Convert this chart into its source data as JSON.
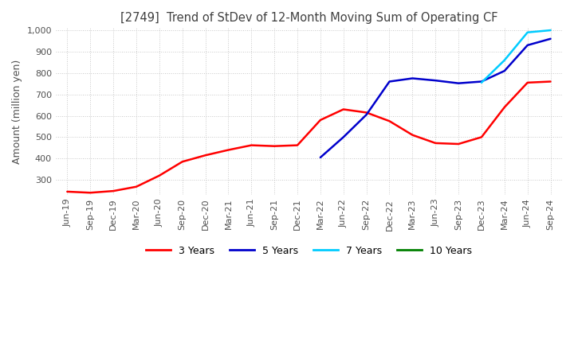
{
  "title": "[2749]  Trend of StDev of 12-Month Moving Sum of Operating CF",
  "ylabel": "Amount (million yen)",
  "ylim": [
    230,
    1010
  ],
  "yticks": [
    300,
    400,
    500,
    600,
    700,
    800,
    900,
    1000
  ],
  "background_color": "#ffffff",
  "grid_color": "#c8c8c8",
  "title_color": "#404040",
  "dates": [
    "Jun-19",
    "Sep-19",
    "Dec-19",
    "Mar-20",
    "Jun-20",
    "Sep-20",
    "Dec-20",
    "Mar-21",
    "Jun-21",
    "Sep-21",
    "Dec-21",
    "Mar-22",
    "Jun-22",
    "Sep-22",
    "Dec-22",
    "Mar-23",
    "Jun-23",
    "Sep-23",
    "Dec-23",
    "Mar-24",
    "Jun-24",
    "Sep-24"
  ],
  "series": {
    "3 Years": {
      "color": "#ff0000",
      "values": [
        245,
        240,
        248,
        268,
        320,
        385,
        415,
        440,
        462,
        458,
        462,
        580,
        630,
        615,
        575,
        510,
        472,
        468,
        500,
        640,
        755,
        760
      ]
    },
    "5 Years": {
      "color": "#0000cc",
      "values": [
        null,
        null,
        null,
        null,
        null,
        null,
        null,
        null,
        null,
        null,
        null,
        405,
        500,
        605,
        760,
        775,
        765,
        752,
        760,
        810,
        930,
        960
      ]
    },
    "7 Years": {
      "color": "#00ccff",
      "values": [
        null,
        null,
        null,
        null,
        null,
        null,
        null,
        null,
        null,
        null,
        null,
        null,
        null,
        null,
        null,
        null,
        null,
        null,
        755,
        860,
        990,
        1000
      ]
    },
    "10 Years": {
      "color": "#008000",
      "values": [
        null,
        null,
        null,
        null,
        null,
        null,
        null,
        null,
        null,
        null,
        null,
        null,
        null,
        null,
        null,
        null,
        null,
        null,
        null,
        null,
        null,
        null
      ]
    }
  },
  "legend_entries": [
    "3 Years",
    "5 Years",
    "7 Years",
    "10 Years"
  ],
  "legend_colors": [
    "#ff0000",
    "#0000cc",
    "#00ccff",
    "#008000"
  ]
}
